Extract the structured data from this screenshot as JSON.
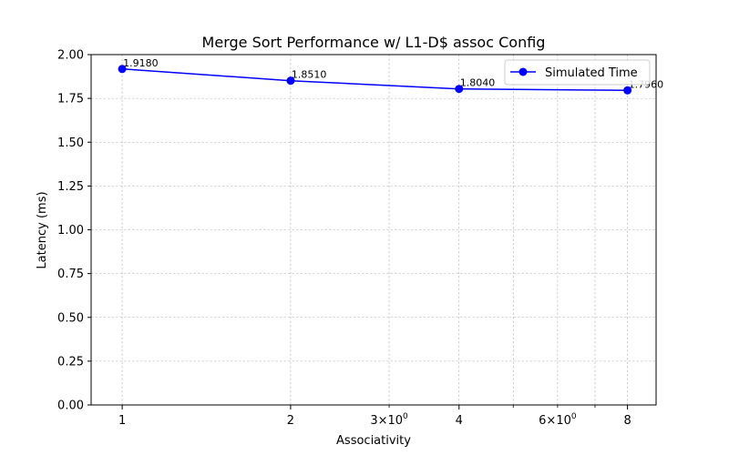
{
  "chart_data": {
    "type": "line",
    "title": "Merge Sort Performance w/ L1-D$ assoc Config",
    "xlabel": "Associativity",
    "ylabel": "Latency (ms)",
    "xscale": "log",
    "grid": true,
    "legend_position": "top-right",
    "xlim": [
      0.88,
      9.0
    ],
    "ylim": [
      0.0,
      2.0
    ],
    "yticks": [
      "0.00",
      "0.25",
      "0.50",
      "0.75",
      "1.00",
      "1.25",
      "1.50",
      "1.75",
      "2.00"
    ],
    "xticks_major": [
      {
        "value": 1,
        "label": "1"
      },
      {
        "value": 2,
        "label": "2"
      },
      {
        "value": 4,
        "label": "4"
      },
      {
        "value": 8,
        "label": "8"
      }
    ],
    "xticks_minor": [
      {
        "value": 3,
        "base": "3",
        "exp": "0"
      },
      {
        "value": 6,
        "base": "6",
        "exp": "0"
      }
    ],
    "xticks_minor_unlabeled": [
      5,
      7
    ],
    "series": [
      {
        "name": "Simulated Time",
        "color": "#0000ff",
        "marker": "circle",
        "x": [
          1,
          2,
          4,
          8
        ],
        "values": [
          1.918,
          1.851,
          1.804,
          1.796
        ],
        "labels": [
          "1.9180",
          "1.8510",
          "1.8040",
          "1.7960"
        ]
      }
    ]
  }
}
